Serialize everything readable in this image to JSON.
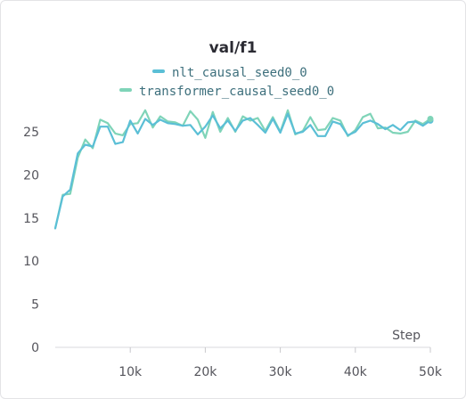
{
  "chart_data": {
    "type": "line",
    "title": "val/f1",
    "xlabel": "Step",
    "ylabel": "",
    "xlim": [
      0,
      50000
    ],
    "ylim": [
      0,
      28
    ],
    "x_ticks": [
      10000,
      20000,
      30000,
      40000,
      50000
    ],
    "x_tick_labels": [
      "10k",
      "20k",
      "30k",
      "40k",
      "50k"
    ],
    "y_ticks": [
      0,
      5,
      10,
      15,
      20,
      25
    ],
    "y_tick_labels": [
      "0",
      "5",
      "10",
      "15",
      "20",
      "25"
    ],
    "grid": false,
    "legend_position": "top-center",
    "series": [
      {
        "name": "nlt_causal_seed0_0",
        "color": "#5bbfd6",
        "x": [
          0,
          1000,
          2000,
          3000,
          4000,
          5000,
          6000,
          7000,
          8000,
          9000,
          10000,
          11000,
          12000,
          13000,
          14000,
          15000,
          16000,
          17000,
          18000,
          19000,
          20000,
          21000,
          22000,
          23000,
          24000,
          25000,
          26000,
          27000,
          28000,
          29000,
          30000,
          31000,
          32000,
          33000,
          34000,
          35000,
          36000,
          37000,
          38000,
          39000,
          40000,
          41000,
          42000,
          43000,
          44000,
          45000,
          46000,
          47000,
          48000,
          49000,
          50000
        ],
        "y": [
          13.8,
          17.5,
          18.3,
          22.5,
          23.5,
          23.3,
          25.6,
          25.6,
          23.6,
          23.8,
          26.3,
          24.8,
          26.5,
          25.8,
          26.4,
          26.0,
          25.9,
          25.7,
          25.8,
          24.7,
          25.6,
          26.9,
          25.4,
          26.3,
          25.1,
          26.3,
          26.6,
          25.8,
          24.9,
          26.5,
          24.9,
          27.1,
          24.8,
          25.0,
          25.8,
          24.5,
          24.5,
          26.2,
          25.9,
          24.6,
          25.0,
          26.0,
          26.3,
          25.9,
          25.3,
          25.8,
          25.2,
          26.1,
          26.2,
          25.7,
          26.3
        ]
      },
      {
        "name": "transformer_causal_seed0_0",
        "color": "#7fd4b8",
        "x": [
          0,
          1000,
          2000,
          3000,
          4000,
          5000,
          6000,
          7000,
          8000,
          9000,
          10000,
          11000,
          12000,
          13000,
          14000,
          15000,
          16000,
          17000,
          18000,
          19000,
          20000,
          21000,
          22000,
          23000,
          24000,
          25000,
          26000,
          27000,
          28000,
          29000,
          30000,
          31000,
          32000,
          33000,
          34000,
          35000,
          36000,
          37000,
          38000,
          39000,
          40000,
          41000,
          42000,
          43000,
          44000,
          45000,
          46000,
          47000,
          48000,
          49000,
          50000
        ],
        "y": [
          13.8,
          17.7,
          17.8,
          22.0,
          24.1,
          23.1,
          26.4,
          26.0,
          24.8,
          24.6,
          25.9,
          26.0,
          27.5,
          25.5,
          26.8,
          26.2,
          26.1,
          25.7,
          27.4,
          26.4,
          24.3,
          27.3,
          25.0,
          26.6,
          25.0,
          26.8,
          26.3,
          26.6,
          25.1,
          26.7,
          25.0,
          27.5,
          24.7,
          25.1,
          26.7,
          25.2,
          25.3,
          26.6,
          26.3,
          24.5,
          25.2,
          26.7,
          27.1,
          25.4,
          25.5,
          24.9,
          24.8,
          25.0,
          26.3,
          25.9,
          26.5
        ]
      }
    ]
  }
}
